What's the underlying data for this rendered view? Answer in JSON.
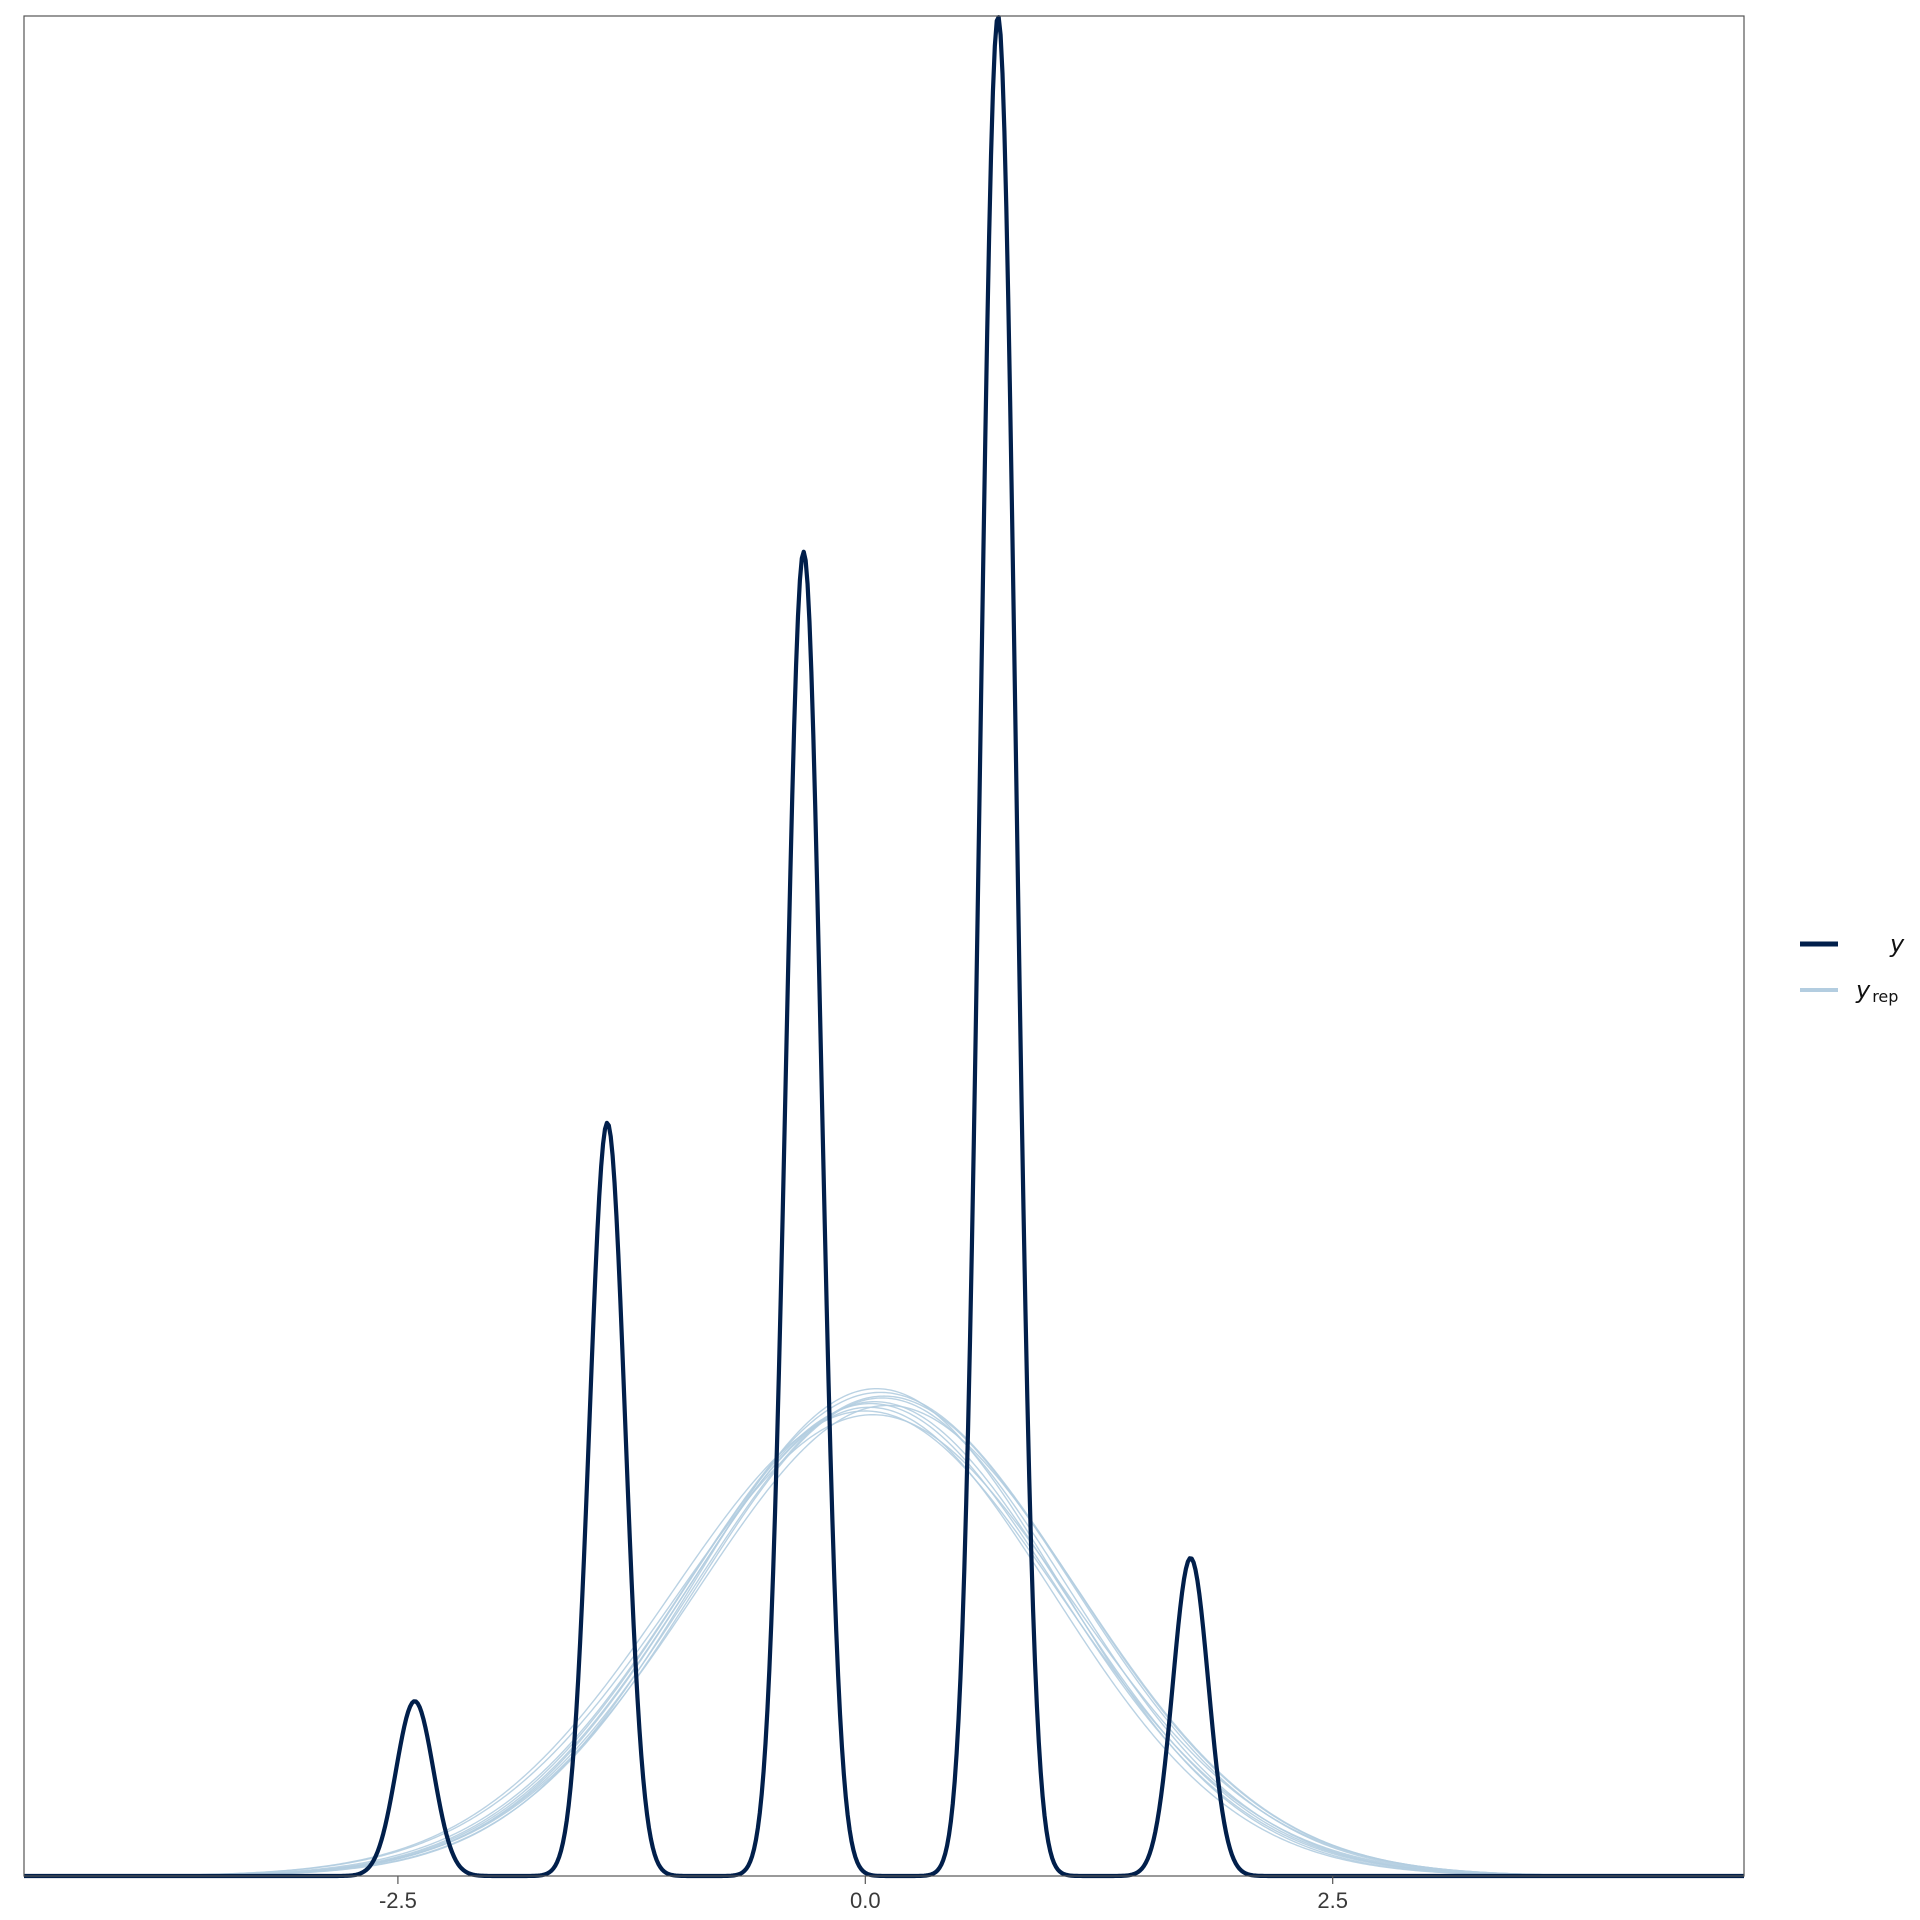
{
  "chart_data": {
    "type": "line",
    "title": "",
    "xlabel": "",
    "ylabel": "",
    "xlim": [
      -4.5,
      4.7
    ],
    "ylim": [
      0,
      1.0
    ],
    "x_ticks": [
      {
        "value": -2.5,
        "label": "-2.5"
      },
      {
        "value": 0.0,
        "label": "0.0"
      },
      {
        "value": 2.5,
        "label": "2.5"
      }
    ],
    "grid": false,
    "legend_position": "right",
    "series": [
      {
        "name": "y",
        "color": "#011f4b",
        "kind": "observed-density",
        "peaks": [
          {
            "center": -2.41,
            "height": 0.094,
            "width": 0.1
          },
          {
            "center": -1.38,
            "height": 0.405,
            "width": 0.095
          },
          {
            "center": -0.33,
            "height": 0.712,
            "width": 0.095
          },
          {
            "center": 0.71,
            "height": 1.0,
            "width": 0.095
          },
          {
            "center": 1.74,
            "height": 0.171,
            "width": 0.095
          }
        ]
      },
      {
        "name": "y_rep",
        "color": "#b3cde0",
        "kind": "replicated-densities",
        "draws": [
          {
            "mean": 0.05,
            "sd": 1.0,
            "height": 0.255
          },
          {
            "mean": 0.08,
            "sd": 1.03,
            "height": 0.26
          },
          {
            "mean": 0.02,
            "sd": 0.98,
            "height": 0.252
          },
          {
            "mean": 0.1,
            "sd": 1.01,
            "height": 0.258
          },
          {
            "mean": 0.0,
            "sd": 1.04,
            "height": 0.25
          },
          {
            "mean": 0.06,
            "sd": 0.97,
            "height": 0.262
          },
          {
            "mean": 0.12,
            "sd": 1.02,
            "height": 0.253
          },
          {
            "mean": 0.04,
            "sd": 1.05,
            "height": 0.248
          },
          {
            "mean": 0.09,
            "sd": 0.99,
            "height": 0.257
          },
          {
            "mean": 0.03,
            "sd": 1.0,
            "height": 0.254
          }
        ]
      }
    ],
    "legend": [
      {
        "key": "y",
        "label": "y",
        "sub": "",
        "color": "#011f4b"
      },
      {
        "key": "y_rep",
        "label": "y",
        "sub": "rep",
        "color": "#b3cde0"
      }
    ]
  }
}
